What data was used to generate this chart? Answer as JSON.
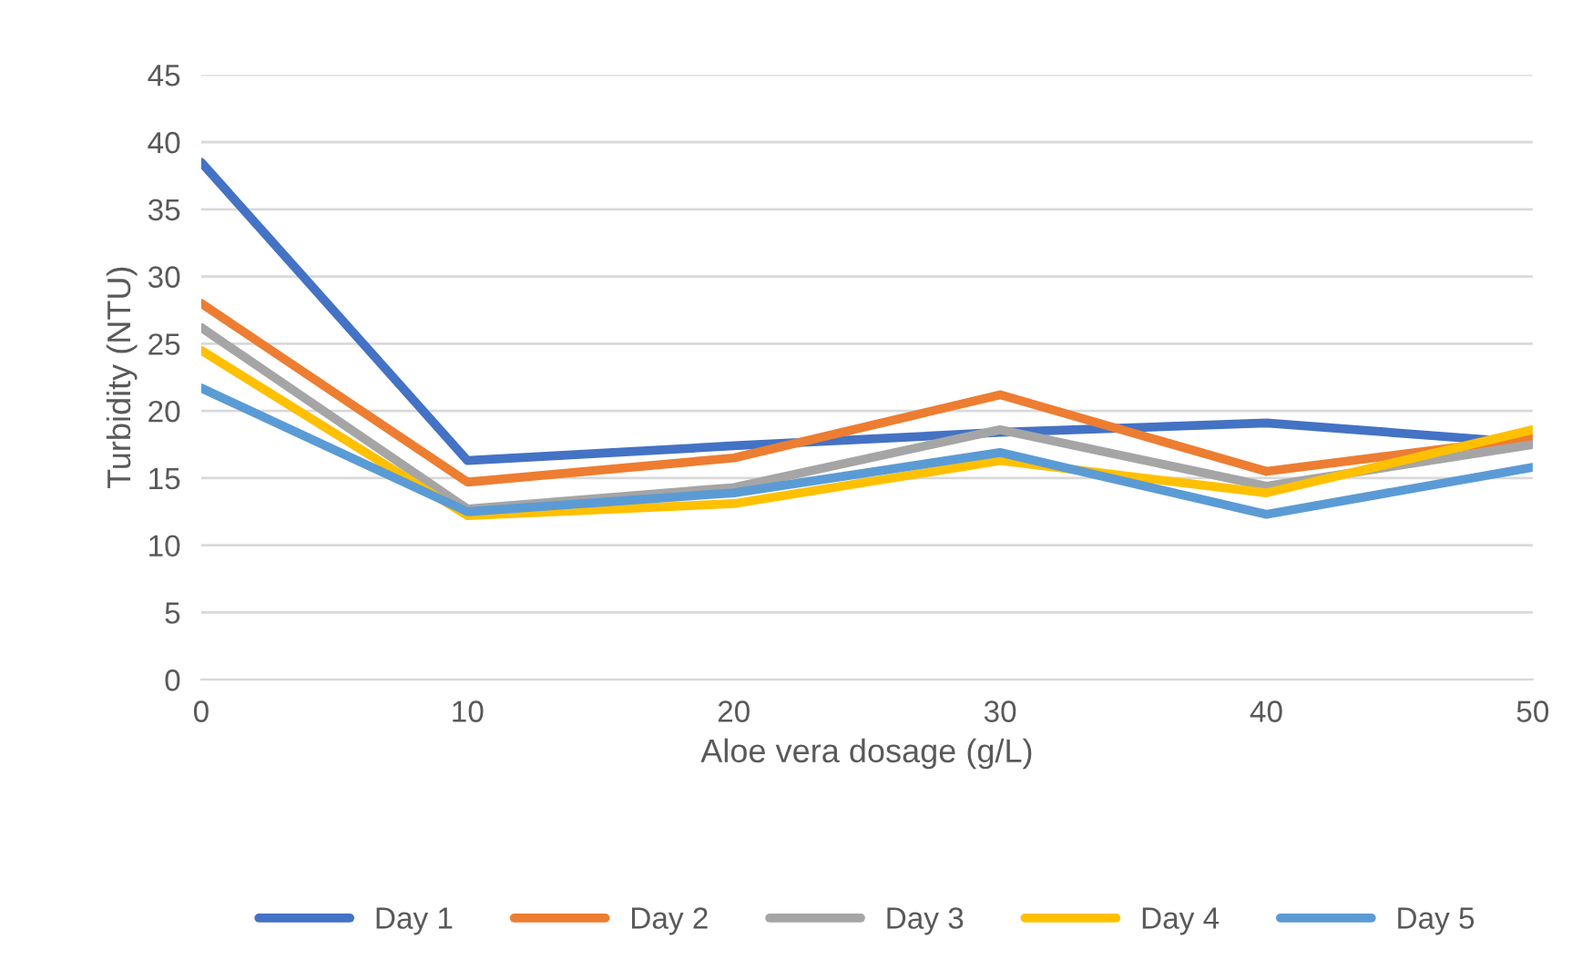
{
  "chart_data": {
    "type": "line",
    "xlabel": "Aloe vera dosage (g/L)",
    "ylabel": "Turbidity (NTU)",
    "x": [
      0,
      10,
      20,
      30,
      40,
      50
    ],
    "xlim": [
      0,
      50
    ],
    "xticks": [
      0,
      10,
      20,
      30,
      40,
      50
    ],
    "ylim": [
      0,
      45
    ],
    "yticks": [
      0,
      5,
      10,
      15,
      20,
      25,
      30,
      35,
      40,
      45
    ],
    "grid": "y",
    "legend": "bottom",
    "marker": "none",
    "line_style": "solid",
    "series": [
      {
        "name": "Day 1",
        "color": "#4472c4",
        "values": [
          38.5,
          16.3,
          17.4,
          18.4,
          19.1,
          17.6
        ]
      },
      {
        "name": "Day 2",
        "color": "#ed7d31",
        "values": [
          28,
          14.7,
          16.5,
          21.2,
          15.5,
          18
        ]
      },
      {
        "name": "Day 3",
        "color": "#a5a5a5",
        "values": [
          26.2,
          12.7,
          14.3,
          18.6,
          14.4,
          17.5
        ]
      },
      {
        "name": "Day 4",
        "color": "#ffc000",
        "values": [
          24.5,
          12.2,
          13.1,
          16.3,
          13.9,
          18.6
        ]
      },
      {
        "name": "Day 5",
        "color": "#5b9bd5",
        "values": [
          21.7,
          12.5,
          13.9,
          16.9,
          12.3,
          15.8
        ]
      }
    ]
  }
}
